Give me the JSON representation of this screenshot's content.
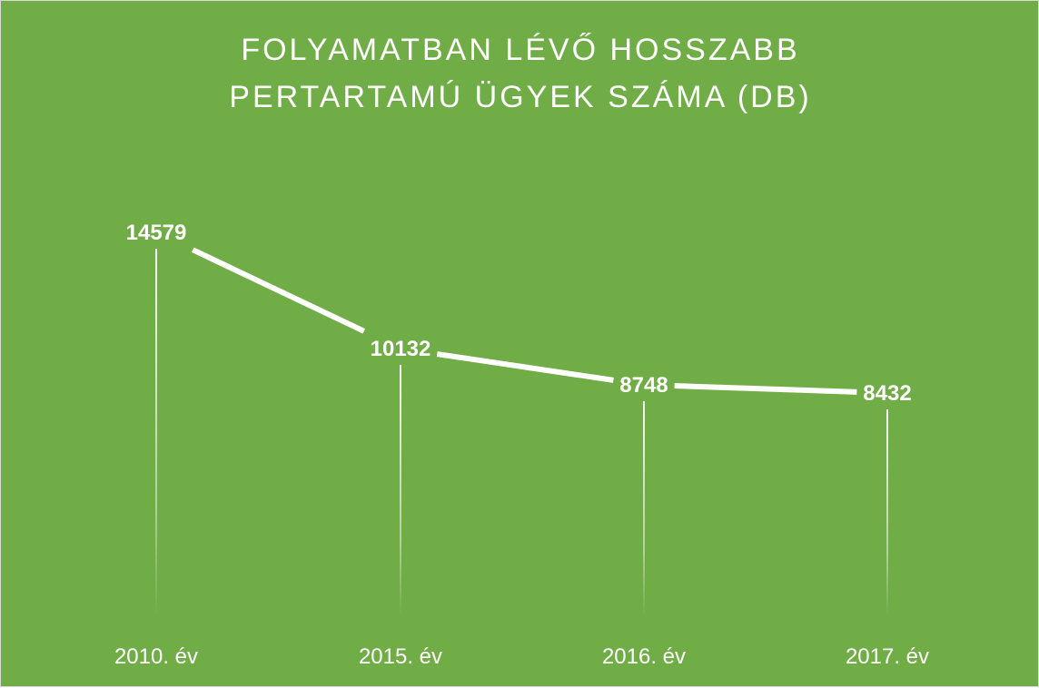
{
  "chart": {
    "title_line1": "FOLYAMATBAN LÉVŐ HOSSZABB",
    "title_line2": "PERTARTAMÚ ÜGYEK SZÁMA (DB)"
  },
  "colors": {
    "background": "#70ad47",
    "line": "#ffffff",
    "drop_line": "#ffffff",
    "text": "#ffffff"
  },
  "chart_data": {
    "type": "line",
    "title": "FOLYAMATBAN LÉVŐ HOSSZABB PERTARTAMÚ ÜGYEK SZÁMA (DB)",
    "categories": [
      "2010. év",
      "2015. év",
      "2016. év",
      "2017. év"
    ],
    "series": [
      {
        "values": [
          14579,
          10132,
          8748,
          8432
        ]
      }
    ],
    "data_labels": [
      "14579",
      "10132",
      "8748",
      "8432"
    ],
    "xlabel": "",
    "ylabel": "",
    "drop_lines": true,
    "gridlines": false,
    "legend": "none",
    "y_axis_visible": false
  }
}
